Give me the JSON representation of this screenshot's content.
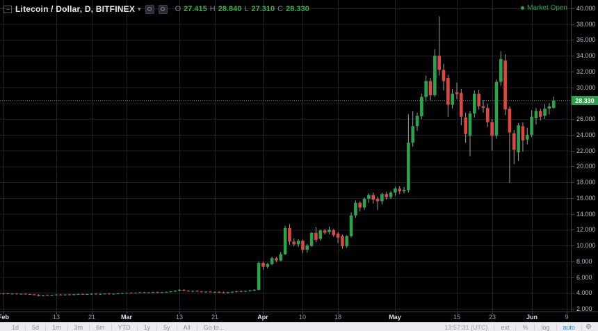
{
  "legend": {
    "symbol_title": "Litecoin / Dollar, D, BITFINEX",
    "ohlc": {
      "o_label": "O",
      "o": "27.415",
      "h_label": "H",
      "h": "28.840",
      "l_label": "L",
      "l": "27.310",
      "c_label": "C",
      "c": "28.330"
    }
  },
  "market_status": {
    "label": "Market Open"
  },
  "price_axis": {
    "min": 2,
    "max": 40,
    "step": 2,
    "decimals": 3,
    "last_price": "28.330"
  },
  "time_axis": {
    "ticks": [
      {
        "label": "Feb",
        "day_index": 1,
        "major": true
      },
      {
        "label": "13",
        "day_index": 13,
        "major": false
      },
      {
        "label": "21",
        "day_index": 21,
        "major": false
      },
      {
        "label": "Mar",
        "day_index": 29,
        "major": true
      },
      {
        "label": "13",
        "day_index": 41,
        "major": false
      },
      {
        "label": "21",
        "day_index": 49,
        "major": false
      },
      {
        "label": "Apr",
        "day_index": 60,
        "major": true
      },
      {
        "label": "10",
        "day_index": 69,
        "major": false
      },
      {
        "label": "18",
        "day_index": 77,
        "major": false
      },
      {
        "label": "May",
        "day_index": 90,
        "major": true
      },
      {
        "label": "15",
        "day_index": 104,
        "major": false
      },
      {
        "label": "23",
        "day_index": 112,
        "major": false
      },
      {
        "label": "Jun",
        "day_index": 121,
        "major": true
      },
      {
        "label": "9",
        "day_index": 129,
        "major": false
      }
    ]
  },
  "toolbar": {
    "ranges": [
      "1d",
      "5d",
      "1m",
      "3m",
      "6m",
      "YTD",
      "1y",
      "5y",
      "All"
    ],
    "goto_label": "Go to...",
    "clock": "13:57:31 (UTC)",
    "right_items": [
      {
        "label": "ext",
        "active": false
      },
      {
        "label": "%",
        "active": false
      },
      {
        "label": "log",
        "active": false
      },
      {
        "label": "auto",
        "active": true
      }
    ]
  },
  "colors": {
    "up": "#2aa34b",
    "down": "#e0463e",
    "wick": "#9b9ea5",
    "grid": "#1f2128",
    "last_price_line": "#2f9e4c",
    "last_price_bg": "#2f9e4c",
    "accent_blue": "#2196f3"
  },
  "chart_data": {
    "type": "candlestick",
    "title": "Litecoin / Dollar, D, BITFINEX",
    "interval": "D",
    "ylim": [
      2,
      40
    ],
    "grid_step": 2,
    "legend_position": "top-left",
    "candles": [
      [
        "Jan 31",
        3.92,
        4.0,
        3.84,
        3.88
      ],
      [
        "Feb 1",
        3.88,
        3.98,
        3.8,
        3.94
      ],
      [
        "Feb 2",
        3.94,
        3.99,
        3.84,
        3.87
      ],
      [
        "Feb 3",
        3.87,
        3.95,
        3.8,
        3.91
      ],
      [
        "Feb 4",
        3.91,
        3.96,
        3.82,
        3.85
      ],
      [
        "Feb 5",
        3.85,
        3.92,
        3.78,
        3.89
      ],
      [
        "Feb 6",
        3.89,
        3.95,
        3.81,
        3.84
      ],
      [
        "Feb 7",
        3.84,
        3.9,
        3.76,
        3.8
      ],
      [
        "Feb 8",
        3.8,
        3.87,
        3.72,
        3.77
      ],
      [
        "Feb 9",
        3.77,
        3.83,
        3.58,
        3.64
      ],
      [
        "Feb 10",
        3.64,
        3.76,
        3.56,
        3.73
      ],
      [
        "Feb 11",
        3.73,
        3.8,
        3.65,
        3.69
      ],
      [
        "Feb 12",
        3.69,
        3.77,
        3.62,
        3.75
      ],
      [
        "Feb 13",
        3.75,
        3.83,
        3.69,
        3.79
      ],
      [
        "Feb 14",
        3.79,
        3.86,
        3.71,
        3.75
      ],
      [
        "Feb 15",
        3.75,
        3.82,
        3.68,
        3.8
      ],
      [
        "Feb 16",
        3.8,
        3.87,
        3.73,
        3.77
      ],
      [
        "Feb 17",
        3.77,
        3.84,
        3.7,
        3.82
      ],
      [
        "Feb 18",
        3.82,
        3.89,
        3.75,
        3.86
      ],
      [
        "Feb 19",
        3.86,
        3.91,
        3.77,
        3.8
      ],
      [
        "Feb 20",
        3.8,
        3.88,
        3.74,
        3.85
      ],
      [
        "Feb 21",
        3.85,
        3.93,
        3.78,
        3.89
      ],
      [
        "Feb 22",
        3.89,
        3.95,
        3.8,
        3.83
      ],
      [
        "Feb 23",
        3.83,
        3.91,
        3.76,
        3.88
      ],
      [
        "Feb 24",
        3.88,
        3.94,
        3.81,
        3.91
      ],
      [
        "Feb 25",
        3.91,
        3.97,
        3.83,
        3.86
      ],
      [
        "Feb 26",
        3.86,
        3.93,
        3.79,
        3.9
      ],
      [
        "Feb 27",
        3.9,
        3.97,
        3.84,
        3.94
      ],
      [
        "Feb 28",
        3.94,
        4.01,
        3.87,
        3.97
      ],
      [
        "Mar 1",
        3.97,
        4.05,
        3.91,
        4.01
      ],
      [
        "Mar 2",
        4.01,
        4.08,
        3.94,
        3.97
      ],
      [
        "Mar 3",
        3.97,
        4.06,
        3.91,
        4.03
      ],
      [
        "Mar 4",
        4.03,
        4.11,
        3.97,
        4.07
      ],
      [
        "Mar 5",
        4.07,
        4.13,
        3.99,
        4.02
      ],
      [
        "Mar 6",
        4.02,
        4.1,
        3.96,
        4.06
      ],
      [
        "Mar 7",
        4.06,
        4.13,
        3.99,
        4.09
      ],
      [
        "Mar 8",
        4.09,
        4.16,
        4.01,
        4.04
      ],
      [
        "Mar 9",
        4.04,
        4.12,
        3.98,
        4.08
      ],
      [
        "Mar 10",
        4.08,
        4.16,
        4.02,
        4.13
      ],
      [
        "Mar 11",
        4.13,
        4.23,
        4.06,
        4.19
      ],
      [
        "Mar 12",
        4.19,
        4.33,
        4.11,
        4.29
      ],
      [
        "Mar 13",
        4.29,
        4.46,
        4.21,
        4.39
      ],
      [
        "Mar 14",
        4.39,
        4.45,
        4.23,
        4.28
      ],
      [
        "Mar 15",
        4.28,
        4.36,
        4.16,
        4.21
      ],
      [
        "Mar 16",
        4.21,
        4.31,
        4.11,
        4.26
      ],
      [
        "Mar 17",
        4.26,
        4.33,
        4.13,
        4.17
      ],
      [
        "Mar 18",
        4.17,
        4.26,
        4.06,
        4.11
      ],
      [
        "Mar 19",
        4.11,
        4.21,
        4.03,
        4.16
      ],
      [
        "Mar 20",
        4.16,
        4.23,
        4.06,
        4.09
      ],
      [
        "Mar 21",
        4.09,
        4.19,
        3.99,
        4.13
      ],
      [
        "Mar 22",
        4.13,
        4.21,
        4.01,
        4.06
      ],
      [
        "Mar 23",
        4.06,
        4.16,
        3.96,
        4.01
      ],
      [
        "Mar 24",
        4.01,
        4.13,
        3.93,
        4.09
      ],
      [
        "Mar 25",
        4.09,
        4.19,
        4.01,
        4.15
      ],
      [
        "Mar 26",
        4.15,
        4.26,
        4.07,
        4.21
      ],
      [
        "Mar 27",
        4.21,
        4.31,
        4.11,
        4.16
      ],
      [
        "Mar 28",
        4.16,
        4.29,
        4.09,
        4.25
      ],
      [
        "Mar 29",
        4.25,
        4.39,
        4.16,
        4.33
      ],
      [
        "Mar 30",
        4.33,
        4.46,
        4.23,
        4.39
      ],
      [
        "Mar 31",
        4.39,
        8.0,
        4.31,
        7.8
      ],
      [
        "Apr 1",
        7.8,
        7.95,
        6.9,
        7.3
      ],
      [
        "Apr 2",
        7.3,
        7.8,
        7.1,
        7.65
      ],
      [
        "Apr 3",
        7.65,
        8.6,
        7.5,
        8.4
      ],
      [
        "Apr 4",
        8.4,
        8.55,
        7.9,
        8.1
      ],
      [
        "Apr 5",
        8.1,
        9.2,
        8.0,
        8.9
      ],
      [
        "Apr 6",
        8.9,
        12.5,
        8.8,
        12.2
      ],
      [
        "Apr 7",
        12.2,
        12.7,
        10.1,
        10.5
      ],
      [
        "Apr 8",
        10.5,
        10.9,
        9.9,
        10.15
      ],
      [
        "Apr 9",
        10.15,
        10.8,
        9.8,
        10.6
      ],
      [
        "Apr 10",
        10.6,
        10.75,
        9.0,
        9.45
      ],
      [
        "Apr 11",
        9.45,
        10.2,
        9.1,
        10.0
      ],
      [
        "Apr 12",
        9.95,
        11.7,
        9.8,
        11.6
      ],
      [
        "Apr 13",
        11.6,
        12.3,
        10.4,
        10.7
      ],
      [
        "Apr 14",
        10.85,
        12.0,
        10.6,
        11.9
      ],
      [
        "Apr 15",
        11.9,
        12.1,
        11.4,
        11.62
      ],
      [
        "Apr 16",
        11.7,
        12.4,
        11.4,
        12.0
      ],
      [
        "Apr 17",
        11.95,
        12.1,
        11.1,
        11.32
      ],
      [
        "Apr 18",
        11.5,
        11.7,
        10.3,
        11.0
      ],
      [
        "Apr 19",
        11.2,
        11.4,
        9.6,
        9.9
      ],
      [
        "Apr 20",
        9.9,
        11.3,
        9.7,
        11.2
      ],
      [
        "Apr 21",
        11.2,
        14.2,
        11.0,
        13.8
      ],
      [
        "Apr 22",
        13.8,
        15.7,
        13.5,
        15.4
      ],
      [
        "Apr 23",
        15.4,
        15.6,
        14.3,
        14.8
      ],
      [
        "Apr 24",
        14.8,
        16.1,
        14.5,
        15.9
      ],
      [
        "Apr 25",
        15.9,
        16.6,
        15.4,
        16.4
      ],
      [
        "Apr 26",
        16.4,
        16.7,
        15.3,
        15.8
      ],
      [
        "Apr 27",
        15.9,
        16.2,
        14.5,
        15.6
      ],
      [
        "Apr 28",
        15.6,
        16.7,
        15.2,
        16.5
      ],
      [
        "Apr 29",
        16.5,
        16.8,
        15.8,
        16.1
      ],
      [
        "Apr 30",
        16.1,
        16.9,
        15.9,
        16.7
      ],
      [
        "May 1",
        16.7,
        17.4,
        16.3,
        17.2
      ],
      [
        "May 2",
        17.2,
        17.5,
        16.5,
        16.85
      ],
      [
        "May 3",
        16.85,
        17.4,
        16.6,
        17.05
      ],
      [
        "May 4",
        17.0,
        26.6,
        16.7,
        23.0
      ],
      [
        "May 5",
        23.0,
        27.0,
        22.5,
        25.1
      ],
      [
        "May 6",
        25.1,
        26.8,
        24.5,
        26.4
      ],
      [
        "May 7",
        26.35,
        29.2,
        26.0,
        28.8
      ],
      [
        "May 8",
        28.8,
        31.5,
        28.2,
        30.8
      ],
      [
        "May 9",
        30.8,
        31.2,
        28.3,
        29.0
      ],
      [
        "May 10",
        29.0,
        34.8,
        28.8,
        34.0
      ],
      [
        "May 11",
        34.0,
        39.0,
        31.5,
        32.2
      ],
      [
        "May 12",
        32.2,
        33.0,
        29.6,
        30.8
      ],
      [
        "May 13",
        31.2,
        31.6,
        26.3,
        27.8
      ],
      [
        "May 14",
        27.8,
        29.8,
        27.3,
        29.2
      ],
      [
        "May 15",
        29.4,
        30.6,
        28.5,
        29.15
      ],
      [
        "May 16",
        29.3,
        29.8,
        25.2,
        26.3
      ],
      [
        "May 17",
        26.2,
        26.8,
        23.0,
        24.1
      ],
      [
        "May 18",
        23.9,
        27.0,
        21.3,
        26.7
      ],
      [
        "May 19",
        26.7,
        29.6,
        26.2,
        29.2
      ],
      [
        "May 20",
        29.2,
        29.7,
        27.2,
        27.6
      ],
      [
        "May 21",
        27.6,
        28.4,
        26.8,
        27.4
      ],
      [
        "May 22",
        27.4,
        27.9,
        25.0,
        25.6
      ],
      [
        "May 23",
        25.6,
        26.0,
        22.0,
        23.9
      ],
      [
        "May 24",
        23.9,
        31.0,
        23.5,
        30.7
      ],
      [
        "May 25",
        30.7,
        34.6,
        30.2,
        33.6
      ],
      [
        "May 26",
        33.4,
        34.2,
        26.5,
        27.2
      ],
      [
        "May 27",
        27.3,
        27.6,
        17.9,
        24.3
      ],
      [
        "May 28",
        24.2,
        24.6,
        20.3,
        22.1
      ],
      [
        "May 29",
        21.8,
        25.5,
        20.7,
        25.2
      ],
      [
        "May 30",
        25.1,
        25.6,
        21.9,
        23.3
      ],
      [
        "May 31",
        23.4,
        24.9,
        22.8,
        24.0
      ],
      [
        "Jun 1",
        24.0,
        27.1,
        23.7,
        26.3
      ],
      [
        "Jun 2",
        26.1,
        27.4,
        25.3,
        27.0
      ],
      [
        "Jun 3",
        27.0,
        27.3,
        25.8,
        26.3
      ],
      [
        "Jun 4",
        26.4,
        27.9,
        26.0,
        27.3
      ],
      [
        "Jun 5",
        27.3,
        28.0,
        26.6,
        27.6
      ],
      [
        "Jun 6",
        27.415,
        28.84,
        27.31,
        28.33
      ]
    ]
  }
}
